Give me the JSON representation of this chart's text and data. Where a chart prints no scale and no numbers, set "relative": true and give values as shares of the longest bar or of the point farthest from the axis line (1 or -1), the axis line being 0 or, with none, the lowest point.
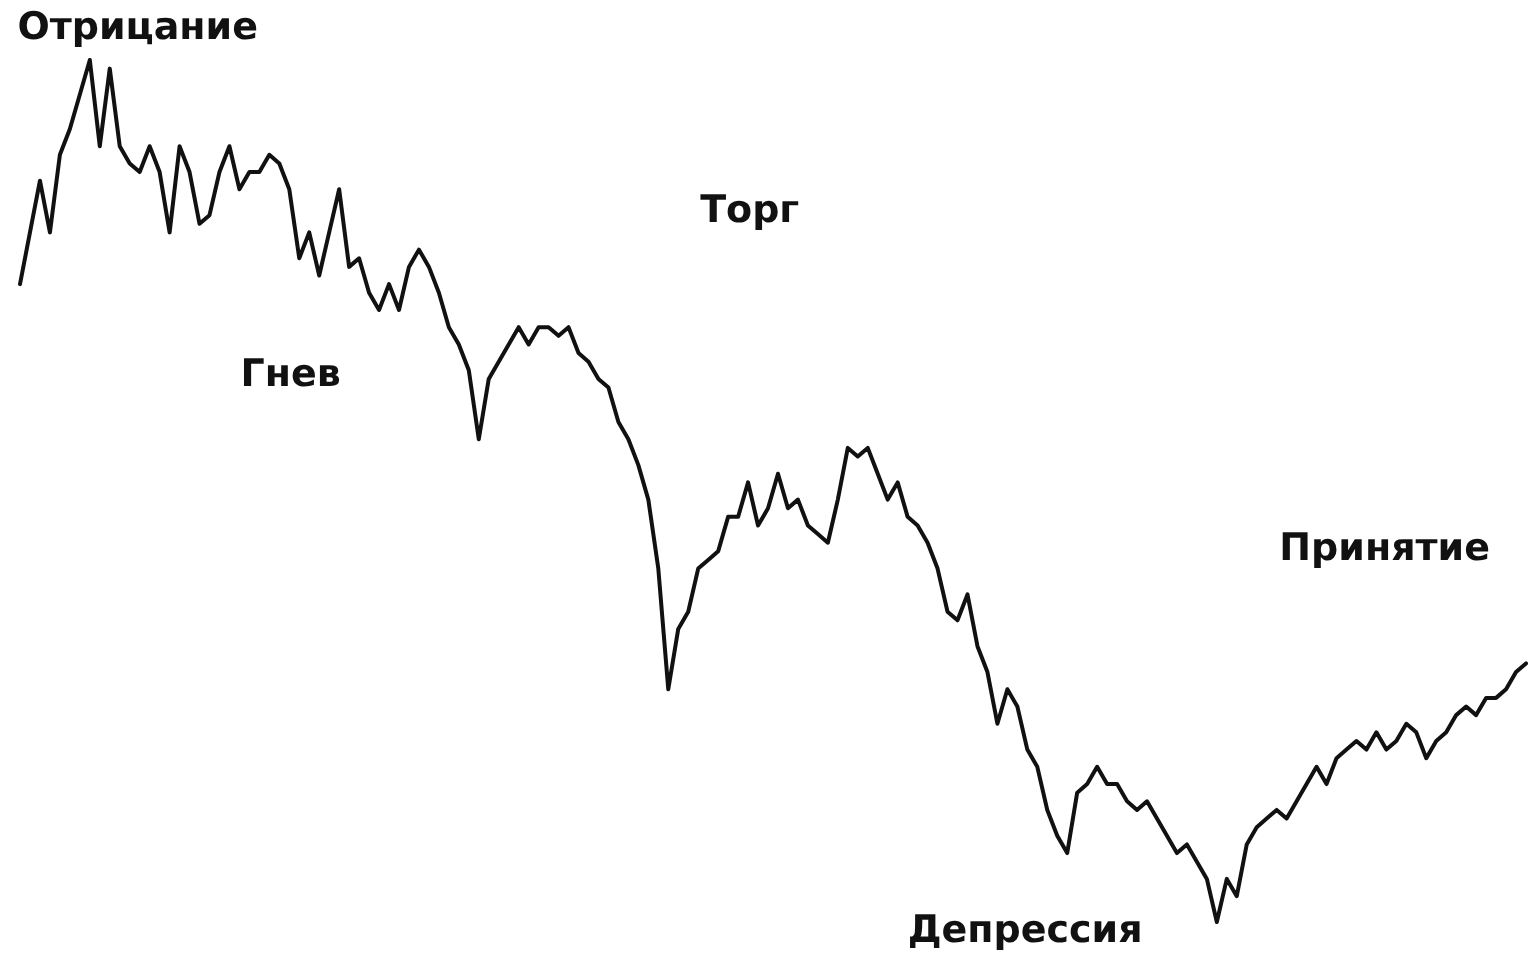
{
  "chart_data": {
    "type": "line",
    "relative": true,
    "annotations": [
      "Отрицание",
      "Гнев",
      "Торг",
      "Депрессия",
      "Принятие"
    ],
    "categories": [
      null,
      null,
      null,
      null,
      null,
      null,
      null,
      null,
      null,
      null,
      null,
      null,
      null,
      null,
      null,
      null,
      null,
      null,
      null,
      null,
      null,
      null,
      null,
      null,
      null,
      null,
      null,
      null,
      null,
      null,
      null,
      null,
      null,
      null,
      null,
      null,
      null,
      null,
      null,
      null,
      null,
      null,
      null,
      null,
      null,
      null,
      null,
      null,
      null,
      null,
      null,
      null,
      null,
      null,
      null,
      null,
      null,
      null,
      null,
      null,
      null,
      null,
      null,
      null,
      null,
      null,
      null,
      null,
      null,
      null,
      null,
      null,
      null,
      null,
      null,
      null,
      null,
      null,
      null,
      null,
      null,
      null,
      null,
      null,
      null,
      null,
      null,
      null,
      null,
      null,
      null,
      null,
      null,
      null,
      null,
      null,
      null,
      null,
      null,
      null,
      null,
      null,
      null,
      null,
      null,
      null,
      null,
      null,
      null,
      null,
      null,
      null,
      null,
      null,
      null,
      null,
      null,
      null,
      null,
      null,
      null,
      null,
      null,
      null,
      null,
      null,
      null,
      null,
      null,
      null,
      null,
      null,
      null,
      null,
      null,
      null,
      null,
      null,
      null,
      null,
      null,
      null,
      null,
      null,
      null,
      null,
      null,
      null,
      null,
      null,
      null,
      null
    ],
    "series": [
      {
        "color": "#111111",
        "values": [
          0.74,
          0.8,
          0.86,
          0.8,
          0.89,
          0.92,
          0.96,
          1,
          0.9,
          0.99,
          0.9,
          0.88,
          0.87,
          0.9,
          0.87,
          0.8,
          0.9,
          0.87,
          0.81,
          0.82,
          0.87,
          0.9,
          0.85,
          0.87,
          0.87,
          0.89,
          0.88,
          0.85,
          0.77,
          0.8,
          0.75,
          0.8,
          0.85,
          0.76,
          0.77,
          0.73,
          0.71,
          0.74,
          0.71,
          0.76,
          0.78,
          0.76,
          0.73,
          0.69,
          0.67,
          0.64,
          0.56,
          0.63,
          0.65,
          0.67,
          0.69,
          0.67,
          0.69,
          0.69,
          0.68,
          0.69,
          0.66,
          0.65,
          0.63,
          0.62,
          0.58,
          0.56,
          0.53,
          0.49,
          0.41,
          0.27,
          0.34,
          0.36,
          0.41,
          0.42,
          0.43,
          0.47,
          0.47,
          0.51,
          0.46,
          0.48,
          0.52,
          0.48,
          0.49,
          0.46,
          0.45,
          0.44,
          0.49,
          0.55,
          0.54,
          0.55,
          0.52,
          0.49,
          0.51,
          0.47,
          0.46,
          0.44,
          0.41,
          0.36,
          0.35,
          0.38,
          0.32,
          0.29,
          0.23,
          0.27,
          0.25,
          0.2,
          0.18,
          0.13,
          0.1,
          0.08,
          0.15,
          0.16,
          0.18,
          0.16,
          0.16,
          0.14,
          0.13,
          0.14,
          0.12,
          0.1,
          0.08,
          0.09,
          0.07,
          0.05,
          0,
          0.05,
          0.03,
          0.09,
          0.11,
          0.12,
          0.13,
          0.12,
          0.14,
          0.16,
          0.18,
          0.16,
          0.19,
          0.2,
          0.21,
          0.2,
          0.22,
          0.2,
          0.21,
          0.23,
          0.22,
          0.19,
          0.21,
          0.22,
          0.24,
          0.25,
          0.24,
          0.26,
          0.26,
          0.27,
          0.29,
          0.3
        ]
      }
    ]
  }
}
